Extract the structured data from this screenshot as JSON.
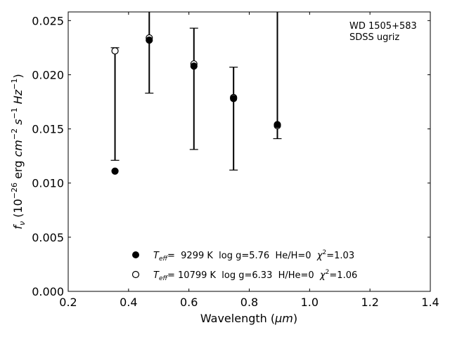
{
  "chart_data": {
    "type": "scatter",
    "xlabel_main": "Wavelength (",
    "xlabel_unit": "μm",
    "xlabel_close": ")",
    "ylabel_parts": {
      "f": "f",
      "nu": "ν",
      "open": " (10",
      "exp1": "−26",
      "erg": " erg ",
      "cm": "cm",
      "exp2": "−2",
      "s": " s",
      "exp3": "−1",
      "hz": " Hz",
      "exp4": "−1",
      "close": ")"
    },
    "xlim": [
      0.2,
      1.4
    ],
    "ylim": [
      0.0,
      0.0258
    ],
    "xticks": [
      0.2,
      0.4,
      0.6,
      0.8,
      1.0,
      1.2,
      1.4
    ],
    "xtick_labels": [
      "0.2",
      "0.4",
      "0.6",
      "0.8",
      "1.0",
      "1.2",
      "1.4"
    ],
    "yticks": [
      0.0,
      0.005,
      0.01,
      0.015,
      0.02,
      0.025
    ],
    "ytick_labels": [
      "0.000",
      "0.005",
      "0.010",
      "0.015",
      "0.020",
      "0.025"
    ],
    "annotation": [
      "WD 1505+583",
      "SDSS ugriz"
    ],
    "observed": {
      "x": [
        0.3551,
        0.4686,
        0.6166,
        0.748,
        0.8932
      ],
      "y": [
        0.0223,
        0.0233,
        0.0209,
        0.0178,
        0.0155
      ],
      "err_low": [
        0.0121,
        0.0183,
        0.0131,
        0.0112,
        0.0141
      ],
      "err_high": [
        0.0225,
        0.0262,
        0.0243,
        0.0207,
        0.0262
      ]
    },
    "series": [
      {
        "marker": "filled",
        "x": [
          0.3551,
          0.4686,
          0.6166,
          0.748,
          0.8932
        ],
        "y": [
          0.0111,
          0.0232,
          0.0208,
          0.0178,
          0.0154
        ]
      },
      {
        "marker": "open",
        "x": [
          0.3551,
          0.4686,
          0.6166,
          0.748,
          0.8932
        ],
        "y": [
          0.0222,
          0.0234,
          0.021,
          0.0179,
          0.0153
        ]
      }
    ],
    "legend": [
      {
        "T": "T",
        "eff": "eff",
        "text": "=  9299 K  log g=5.76  He/H=0  ",
        "chi": "χ",
        "two": "2",
        "val": "=1.03"
      },
      {
        "T": "T",
        "eff": "eff",
        "text": "= 10799 K  log g=6.33  H/He=0  ",
        "chi": "χ",
        "two": "2",
        "val": "=1.06"
      }
    ],
    "colors": {
      "marker": "#000000",
      "background": "#ffffff"
    }
  }
}
